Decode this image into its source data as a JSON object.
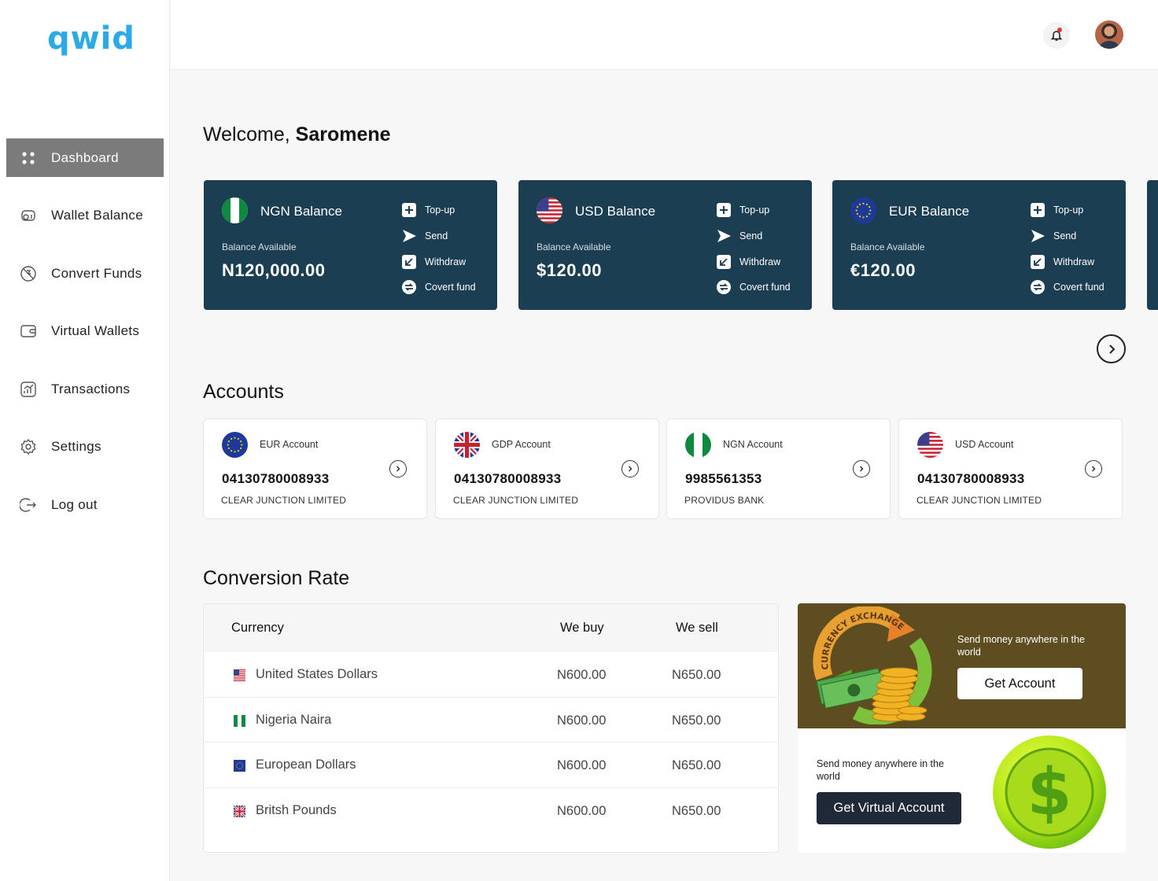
{
  "brand": {
    "logo": "qwid"
  },
  "sidebar": {
    "items": [
      {
        "label": "Dashboard",
        "icon": "dashboard-icon",
        "active": true
      },
      {
        "label": "Wallet Balance",
        "icon": "wallet-balance-icon"
      },
      {
        "label": "Convert Funds",
        "icon": "convert-icon"
      },
      {
        "label": "Virtual Wallets",
        "icon": "wallet-icon"
      },
      {
        "label": "Transactions",
        "icon": "chart-icon"
      },
      {
        "label": "Settings",
        "icon": "gear-icon"
      },
      {
        "label": "Log out",
        "icon": "logout-icon"
      }
    ]
  },
  "header": {
    "greeting": "Welcome,",
    "user": "Saromene"
  },
  "balances": [
    {
      "title": "NGN Balance",
      "sub": "Balance Available",
      "amount": "N120,000.00",
      "flag": "nigeria"
    },
    {
      "title": "USD Balance",
      "sub": "Balance Available",
      "amount": "$120.00",
      "flag": "usa"
    },
    {
      "title": "EUR Balance",
      "sub": "Balance Available",
      "amount": "€120.00",
      "flag": "eu"
    }
  ],
  "balance_actions": [
    "Top-up",
    "Send",
    "Withdraw",
    "Covert fund"
  ],
  "accounts_title": "Accounts",
  "accounts": [
    {
      "name": "EUR Account",
      "number": "04130780008933",
      "bank": "CLEAR JUNCTION LIMITED",
      "flag": "eu"
    },
    {
      "name": "GDP Account",
      "number": "04130780008933",
      "bank": "CLEAR JUNCTION LIMITED",
      "flag": "uk"
    },
    {
      "name": "NGN Account",
      "number": "9985561353",
      "bank": "PROVIDUS BANK",
      "flag": "nigeria"
    },
    {
      "name": "USD Account",
      "number": "04130780008933",
      "bank": "CLEAR JUNCTION LIMITED",
      "flag": "usa"
    }
  ],
  "rates_title": "Conversion Rate",
  "rates": {
    "headers": {
      "currency": "Currency",
      "buy": "We buy",
      "sell": "We sell"
    },
    "rows": [
      {
        "currency": "United States Dollars",
        "buy": "N600.00",
        "sell": "N650.00",
        "flag": "usa"
      },
      {
        "currency": "Nigeria Naira",
        "buy": "N600.00",
        "sell": "N650.00",
        "flag": "nigeria"
      },
      {
        "currency": "European Dollars",
        "buy": "N600.00",
        "sell": "N650.00",
        "flag": "eu"
      },
      {
        "currency": "Britsh Pounds",
        "buy": "N600.00",
        "sell": "N650.00",
        "flag": "uk"
      }
    ]
  },
  "promo": {
    "top_text": "Send money anywhere in the world",
    "top_button": "Get Account",
    "image_text": "CURRENCY EXCHANGE",
    "bottom_text": "Send money anywhere in the world",
    "bottom_button": "Get Virtual Account"
  },
  "colors": {
    "card": "#1c3e52",
    "logo": "#2ba9e8",
    "promo_top": "#5e4d21",
    "active_nav": "#7b7b7b"
  }
}
